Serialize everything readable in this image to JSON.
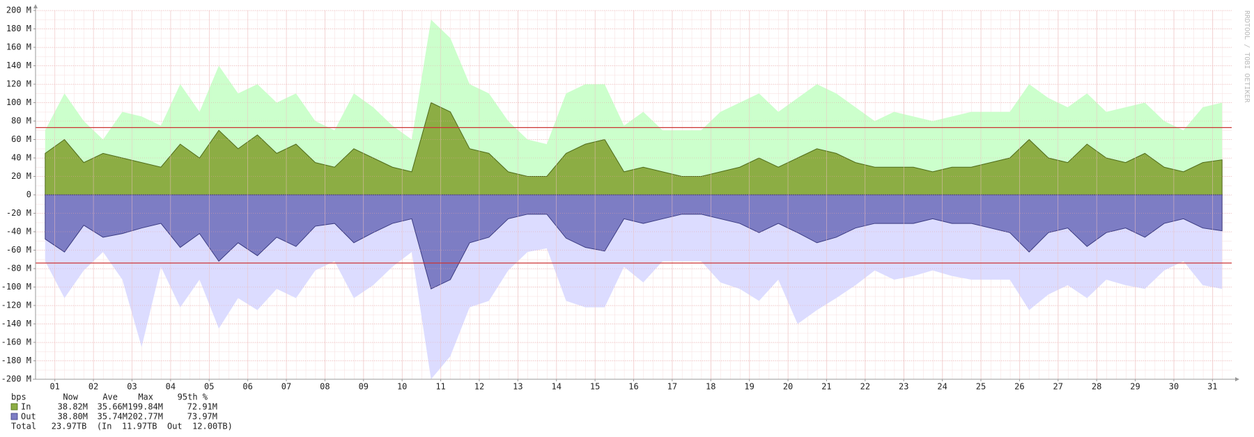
{
  "chart_data": {
    "type": "area",
    "watermark": "RRDTOOL / TOBI OETIKER",
    "xlim": [
      0,
      31
    ],
    "xticks": [
      {
        "value": 0.5,
        "label": "01"
      },
      {
        "value": 1.5,
        "label": "02"
      },
      {
        "value": 2.5,
        "label": "03"
      },
      {
        "value": 3.5,
        "label": "04"
      },
      {
        "value": 4.5,
        "label": "05"
      },
      {
        "value": 5.5,
        "label": "06"
      },
      {
        "value": 6.5,
        "label": "07"
      },
      {
        "value": 7.5,
        "label": "08"
      },
      {
        "value": 8.5,
        "label": "09"
      },
      {
        "value": 9.5,
        "label": "10"
      },
      {
        "value": 10.5,
        "label": "11"
      },
      {
        "value": 11.5,
        "label": "12"
      },
      {
        "value": 12.5,
        "label": "13"
      },
      {
        "value": 13.5,
        "label": "14"
      },
      {
        "value": 14.5,
        "label": "15"
      },
      {
        "value": 15.5,
        "label": "16"
      },
      {
        "value": 16.5,
        "label": "17"
      },
      {
        "value": 17.5,
        "label": "18"
      },
      {
        "value": 18.5,
        "label": "19"
      },
      {
        "value": 19.5,
        "label": "20"
      },
      {
        "value": 20.5,
        "label": "21"
      },
      {
        "value": 21.5,
        "label": "22"
      },
      {
        "value": 22.5,
        "label": "23"
      },
      {
        "value": 23.5,
        "label": "24"
      },
      {
        "value": 24.5,
        "label": "25"
      },
      {
        "value": 25.5,
        "label": "26"
      },
      {
        "value": 26.5,
        "label": "27"
      },
      {
        "value": 27.5,
        "label": "28"
      },
      {
        "value": 28.5,
        "label": "29"
      },
      {
        "value": 29.5,
        "label": "30"
      },
      {
        "value": 30.5,
        "label": "31"
      }
    ],
    "ylim": [
      -200,
      200
    ],
    "yticks": [
      {
        "value": 200,
        "label": "200 M"
      },
      {
        "value": 180,
        "label": "180 M"
      },
      {
        "value": 160,
        "label": "160 M"
      },
      {
        "value": 140,
        "label": "140 M"
      },
      {
        "value": 120,
        "label": "120 M"
      },
      {
        "value": 100,
        "label": "100 M"
      },
      {
        "value": 80,
        "label": "80 M"
      },
      {
        "value": 60,
        "label": "60 M"
      },
      {
        "value": 40,
        "label": "40 M"
      },
      {
        "value": 20,
        "label": "20 M"
      },
      0,
      {
        "value": -20,
        "label": "-20 M"
      },
      {
        "value": -40,
        "label": "-40 M"
      },
      {
        "value": -60,
        "label": "-60 M"
      },
      {
        "value": -80,
        "label": "-80 M"
      },
      {
        "value": -100,
        "label": "-100 M"
      },
      {
        "value": -120,
        "label": "-120 M"
      },
      {
        "value": -140,
        "label": "-140 M"
      },
      {
        "value": -160,
        "label": "-160 M"
      },
      {
        "value": -180,
        "label": "-180 M"
      },
      {
        "value": -200,
        "label": "-200 M"
      }
    ],
    "grid": true,
    "hlines": [
      72.91,
      -73.97
    ],
    "hline_color": "#cc3333",
    "x": [
      0.25,
      0.75,
      1.25,
      1.75,
      2.25,
      2.75,
      3.25,
      3.75,
      4.25,
      4.75,
      5.25,
      5.75,
      6.25,
      6.75,
      7.25,
      7.75,
      8.25,
      8.75,
      9.25,
      9.75,
      10.25,
      10.75,
      11.25,
      11.75,
      12.25,
      12.75,
      13.25,
      13.75,
      14.25,
      14.75,
      15.25,
      15.75,
      16.25,
      16.75,
      17.25,
      17.75,
      18.25,
      18.75,
      19.25,
      19.75,
      20.25,
      20.75,
      21.25,
      21.75,
      22.25,
      22.75,
      23.25,
      23.75,
      24.25,
      24.75,
      25.25,
      25.75,
      26.25,
      26.75,
      27.25,
      27.75,
      28.25,
      28.75,
      29.25,
      29.75,
      30.25,
      30.75
    ],
    "series": [
      {
        "name": "In",
        "color": "#8cad44",
        "line_color": "#4f6b1a",
        "peak_color": "#ccffcc",
        "values": [
          45,
          60,
          35,
          45,
          40,
          35,
          30,
          55,
          40,
          70,
          50,
          65,
          45,
          55,
          35,
          30,
          50,
          40,
          30,
          25,
          100,
          90,
          50,
          45,
          25,
          20,
          20,
          45,
          55,
          60,
          25,
          30,
          25,
          20,
          20,
          25,
          30,
          40,
          30,
          40,
          50,
          45,
          35,
          30,
          30,
          30,
          25,
          30,
          30,
          35,
          40,
          60,
          40,
          35,
          55,
          40,
          35,
          45,
          30,
          25,
          35,
          38
        ],
        "peaks": [
          70,
          110,
          80,
          60,
          90,
          85,
          75,
          120,
          90,
          140,
          110,
          120,
          100,
          110,
          80,
          70,
          110,
          95,
          75,
          60,
          190,
          170,
          120,
          110,
          80,
          60,
          55,
          110,
          120,
          120,
          75,
          90,
          70,
          70,
          70,
          90,
          100,
          110,
          90,
          105,
          120,
          110,
          95,
          80,
          90,
          85,
          80,
          85,
          90,
          90,
          90,
          120,
          105,
          95,
          110,
          90,
          95,
          100,
          80,
          70,
          95,
          100
        ]
      },
      {
        "name": "Out",
        "color": "#7d7dc4",
        "line_color": "#3a3a80",
        "peak_color": "#dcdcff",
        "values": [
          -48,
          -62,
          -33,
          -46,
          -42,
          -36,
          -31,
          -57,
          -42,
          -72,
          -52,
          -66,
          -46,
          -56,
          -34,
          -31,
          -52,
          -41,
          -31,
          -26,
          -102,
          -92,
          -52,
          -46,
          -26,
          -21,
          -21,
          -47,
          -57,
          -61,
          -26,
          -31,
          -26,
          -21,
          -21,
          -26,
          -31,
          -41,
          -31,
          -41,
          -52,
          -46,
          -36,
          -31,
          -31,
          -31,
          -26,
          -31,
          -31,
          -36,
          -41,
          -62,
          -41,
          -36,
          -56,
          -41,
          -36,
          -46,
          -31,
          -26,
          -36,
          -39
        ],
        "peaks": [
          -72,
          -112,
          -82,
          -62,
          -92,
          -165,
          -78,
          -122,
          -92,
          -145,
          -112,
          -125,
          -102,
          -112,
          -82,
          -72,
          -112,
          -98,
          -78,
          -62,
          -200,
          -175,
          -122,
          -115,
          -82,
          -62,
          -58,
          -115,
          -122,
          -122,
          -78,
          -95,
          -72,
          -72,
          -72,
          -95,
          -102,
          -115,
          -92,
          -140,
          -125,
          -112,
          -98,
          -82,
          -92,
          -88,
          -82,
          -88,
          -92,
          -92,
          -92,
          -125,
          -108,
          -98,
          -112,
          -92,
          -98,
          -102,
          -82,
          -72,
          -98,
          -102
        ]
      }
    ],
    "legend": {
      "columns": [
        "bps",
        "Now",
        "Ave",
        "Max",
        "95th %"
      ],
      "rows": [
        [
          "38.82M",
          "35.66M",
          "199.84M",
          "72.91M"
        ],
        [
          "38.80M",
          "35.74M",
          "202.77M",
          "73.97M"
        ]
      ],
      "total": "Total   23.97TB  (In  11.97TB  Out  12.00TB)"
    }
  }
}
